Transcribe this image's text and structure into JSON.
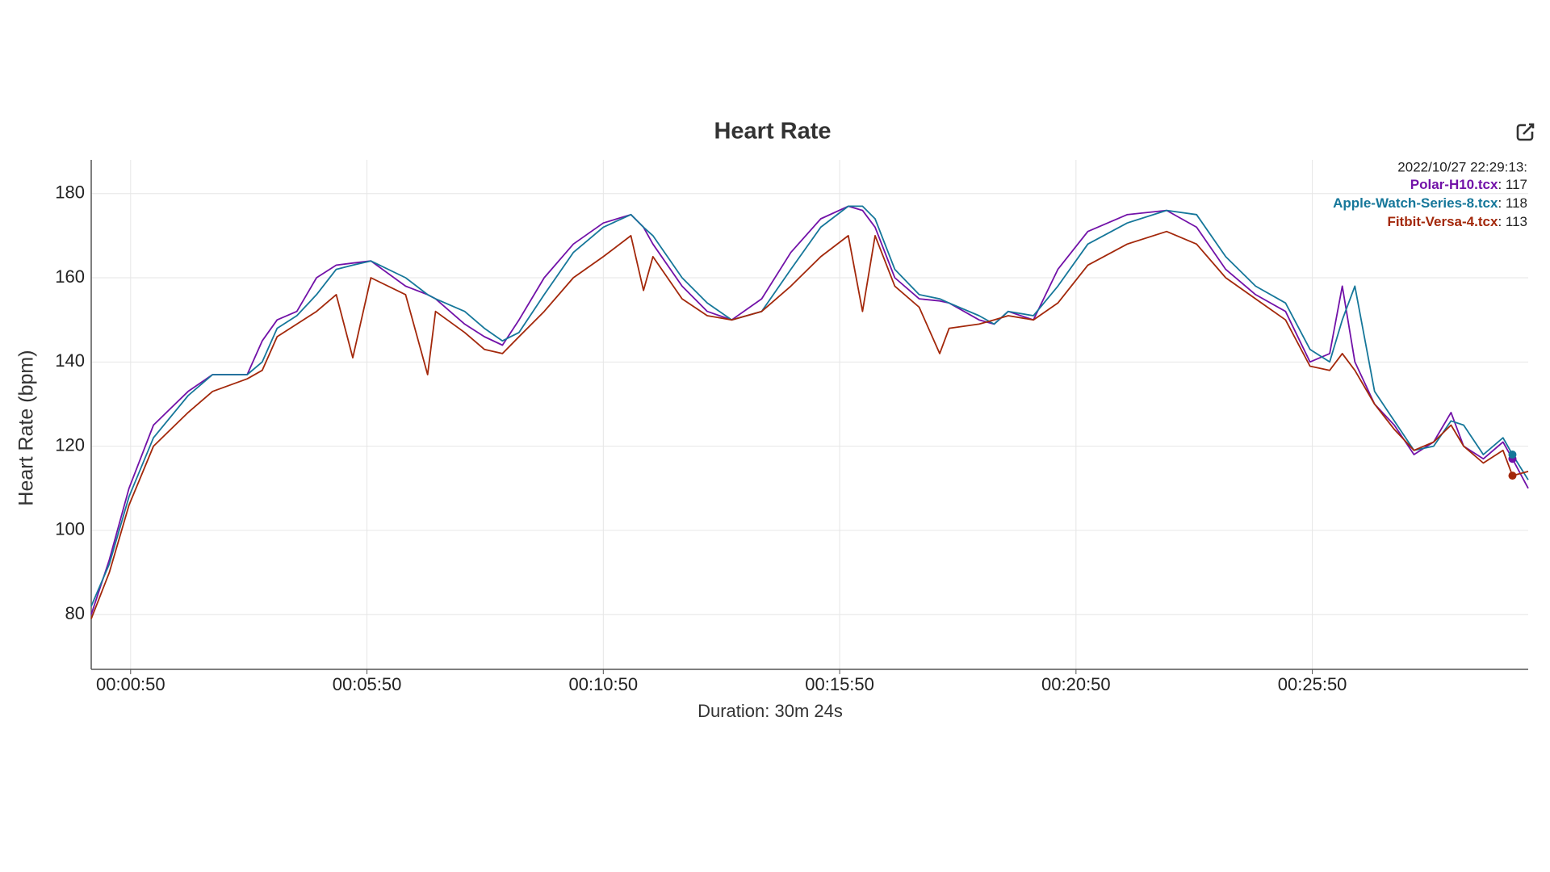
{
  "chart_data": {
    "type": "line",
    "title": "Heart Rate",
    "ylabel": "Heart Rate (bpm)",
    "xlabel": "Duration: 30m 24s",
    "x": [
      0,
      23,
      48,
      79,
      123,
      154,
      198,
      217,
      236,
      261,
      286,
      311,
      332,
      355,
      399,
      427,
      437,
      474,
      499,
      522,
      543,
      575,
      612,
      650,
      685,
      701,
      713,
      750,
      782,
      813,
      851,
      888,
      926,
      961,
      979,
      995,
      1020,
      1051,
      1077,
      1089,
      1127,
      1146,
      1164,
      1196,
      1227,
      1265,
      1315,
      1365,
      1403,
      1440,
      1478,
      1516,
      1547,
      1572,
      1588,
      1604,
      1629,
      1654,
      1679,
      1704,
      1726,
      1742,
      1767,
      1792,
      1804,
      1824
    ],
    "series": [
      {
        "name": "Polar-H10.tcx",
        "color": "#7212a8",
        "values": [
          80,
          93,
          110,
          125,
          133,
          137,
          137,
          145,
          150,
          152,
          160,
          163,
          163.5,
          164,
          158,
          156,
          155,
          149,
          146,
          144,
          150,
          160,
          168,
          173,
          175,
          172,
          168,
          158,
          152,
          150,
          155,
          166,
          174,
          177,
          176,
          172,
          160,
          155,
          154.5,
          154,
          150,
          149,
          152,
          150,
          162,
          171,
          175,
          176,
          172,
          162,
          156,
          152,
          140,
          142,
          158,
          140,
          130,
          125,
          118,
          121,
          128,
          120,
          117,
          121,
          117,
          110
        ]
      },
      {
        "name": "Apple-Watch-Series-8.tcx",
        "color": "#16779a",
        "values": [
          82,
          92,
          108,
          122,
          132,
          137,
          137,
          140,
          148,
          151,
          156,
          162,
          163,
          164,
          160,
          156,
          155,
          152,
          148,
          145,
          147,
          156,
          166,
          172,
          175,
          172,
          170,
          160,
          154,
          150,
          152,
          162,
          172,
          177,
          177,
          174,
          162,
          156,
          155,
          154,
          151,
          149,
          152,
          151,
          158,
          168,
          173,
          176,
          175,
          165,
          158,
          154,
          143,
          140,
          150,
          158,
          133,
          126,
          119,
          120,
          126,
          125,
          118,
          122,
          118,
          112
        ]
      },
      {
        "name": "Fitbit-Versa-4.tcx",
        "color": "#a3280b",
        "values": [
          79,
          90,
          106,
          120,
          128,
          133,
          136,
          138,
          146,
          149,
          152,
          156,
          141,
          160,
          156,
          137,
          152,
          147,
          143,
          142,
          146,
          152,
          160,
          165,
          170,
          157,
          165,
          155,
          151,
          150,
          152,
          158,
          165,
          170,
          152,
          170,
          158,
          153,
          142,
          148,
          149,
          150,
          151,
          150,
          154,
          163,
          168,
          171,
          168,
          160,
          155,
          150,
          139,
          138,
          142,
          138,
          130,
          124,
          119,
          121,
          125,
          120,
          116,
          119,
          113,
          114
        ]
      }
    ],
    "xlim": [
      0,
      1824
    ],
    "ylim": [
      67,
      188
    ],
    "xticks": [
      {
        "value": 50,
        "label": "00:00:50"
      },
      {
        "value": 350,
        "label": "00:05:50"
      },
      {
        "value": 650,
        "label": "00:10:50"
      },
      {
        "value": 950,
        "label": "00:15:50"
      },
      {
        "value": 1250,
        "label": "00:20:50"
      },
      {
        "value": 1550,
        "label": "00:25:50"
      }
    ],
    "yticks": [
      80,
      100,
      120,
      140,
      160,
      180
    ],
    "grid": true,
    "tooltip": {
      "title": "2022/10/27 22:29:13:",
      "x": 1804,
      "separator": ": ",
      "values": [
        117,
        118,
        113
      ]
    }
  }
}
